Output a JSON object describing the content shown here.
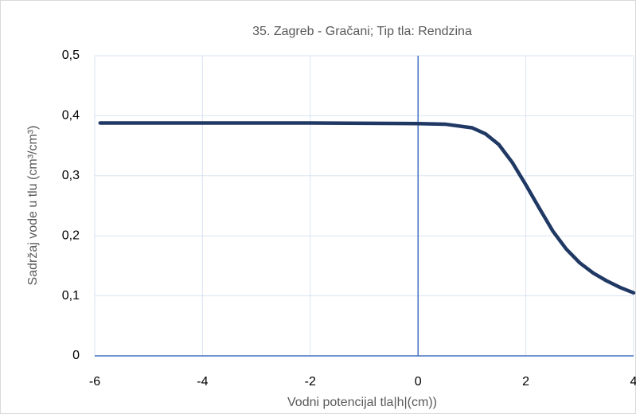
{
  "chart_data": {
    "type": "line",
    "title": "35. Zagreb - Gračani; Tip tla: Rendzina",
    "x_label": "Vodni potencijal tla|h|(cm))",
    "y_label": "Sadržaj vode u tlu  (cm³/cm³)",
    "x": [
      -5.9,
      -2,
      0,
      0.5,
      1,
      1.25,
      1.5,
      1.75,
      2,
      2.25,
      2.5,
      2.75,
      3,
      3.25,
      3.5,
      3.75,
      4
    ],
    "values": [
      0.388,
      0.388,
      0.387,
      0.386,
      0.38,
      0.37,
      0.352,
      0.322,
      0.285,
      0.246,
      0.208,
      0.178,
      0.155,
      0.138,
      0.125,
      0.114,
      0.105
    ],
    "color": "#203864",
    "xlim": [
      -6,
      4
    ],
    "xticks": [
      -6,
      -4,
      -2,
      0,
      2,
      4
    ],
    "ylim": [
      0,
      0.5
    ],
    "yticks": [
      0,
      {
        "value": 0.1,
        "label": "0,1"
      },
      {
        "value": 0.2,
        "label": "0,2"
      },
      {
        "value": 0.3,
        "label": "0,3"
      },
      {
        "value": 0.4,
        "label": "0,4"
      },
      {
        "value": 0.5,
        "label": "0,5"
      }
    ],
    "grid": true
  }
}
